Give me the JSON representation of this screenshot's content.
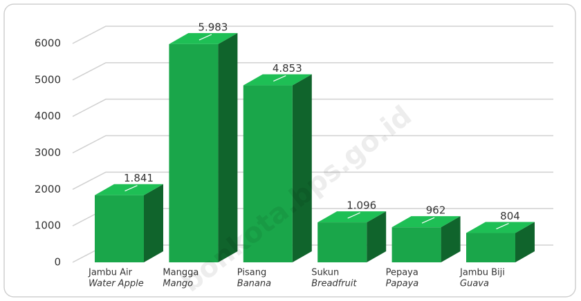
{
  "chart_data": {
    "type": "bar3d",
    "categories": [
      "Jambu Air",
      "Mangga",
      "Pisang",
      "Sukun",
      "Pepaya",
      "Jambu Biji"
    ],
    "categories_translation": [
      "Water Apple",
      "Mango",
      "Banana",
      "Breadfruit",
      "Papaya",
      "Guava"
    ],
    "values": [
      1841,
      5983,
      4853,
      1096,
      962,
      804
    ],
    "value_labels": [
      "1.841",
      "5.983",
      "4.853",
      "1.096",
      "962",
      "804"
    ],
    "color": "#1aa64a",
    "ylim": [
      0,
      6000
    ],
    "yticks": [
      0,
      1000,
      2000,
      3000,
      4000,
      5000,
      6000
    ],
    "grid": true,
    "watermark": "bonkota.bps.go.id"
  }
}
